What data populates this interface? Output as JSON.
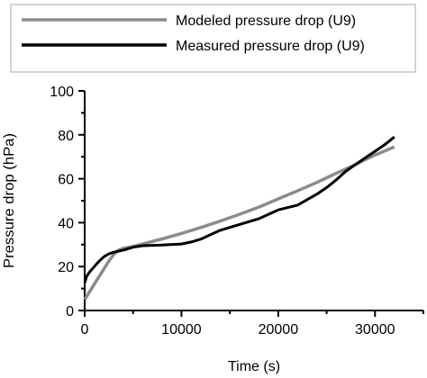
{
  "chart_data": {
    "type": "line",
    "xlabel": "Time (s)",
    "ylabel": "Pressure drop (hPa)",
    "xlim": [
      0,
      35000
    ],
    "ylim": [
      0,
      100
    ],
    "xticks": [
      "0",
      "10000",
      "20000",
      "30000"
    ],
    "yticks": [
      "0",
      "20",
      "40",
      "60",
      "80",
      "100"
    ],
    "xtick_values": [
      0,
      10000,
      20000,
      30000
    ],
    "ytick_values": [
      0,
      20,
      40,
      60,
      80,
      100
    ],
    "grid": false,
    "legend_position": "top",
    "series": [
      {
        "name": "Modeled pressure drop (U9)",
        "color": "#8c8c8c",
        "x": [
          0,
          500,
          1000,
          1500,
          2000,
          2500,
          3000,
          3500,
          4000,
          5000,
          6000,
          8000,
          10000,
          12000,
          14000,
          16000,
          18000,
          20000,
          22000,
          24000,
          26000,
          28000,
          30000,
          32000
        ],
        "y": [
          5,
          8.5,
          12,
          15.5,
          19,
          22.5,
          25.5,
          27.5,
          28.3,
          29.2,
          30.3,
          32.6,
          35.1,
          37.8,
          40.7,
          43.8,
          47.1,
          50.8,
          54.5,
          58.3,
          62.5,
          66.5,
          70.8,
          74.5
        ]
      },
      {
        "name": "Measured pressure drop (U9)",
        "color": "#000000",
        "x": [
          0,
          200,
          500,
          1000,
          1500,
          2000,
          2500,
          3000,
          4000,
          5000,
          6000,
          8000,
          10000,
          11000,
          12000,
          13000,
          14000,
          16000,
          18000,
          19000,
          20000,
          22000,
          24000,
          25000,
          26000,
          27000,
          28000,
          29000,
          30000,
          31000,
          32000
        ],
        "y": [
          12.5,
          15.5,
          17.5,
          20,
          22.5,
          24.5,
          25.8,
          26.5,
          27.5,
          28.8,
          29.5,
          29.8,
          30.3,
          31.2,
          32.5,
          34.5,
          36.5,
          39.2,
          41.8,
          43.8,
          45.8,
          48,
          53,
          56,
          59.5,
          63.5,
          66.5,
          69.5,
          72.5,
          75.5,
          79
        ]
      }
    ]
  }
}
